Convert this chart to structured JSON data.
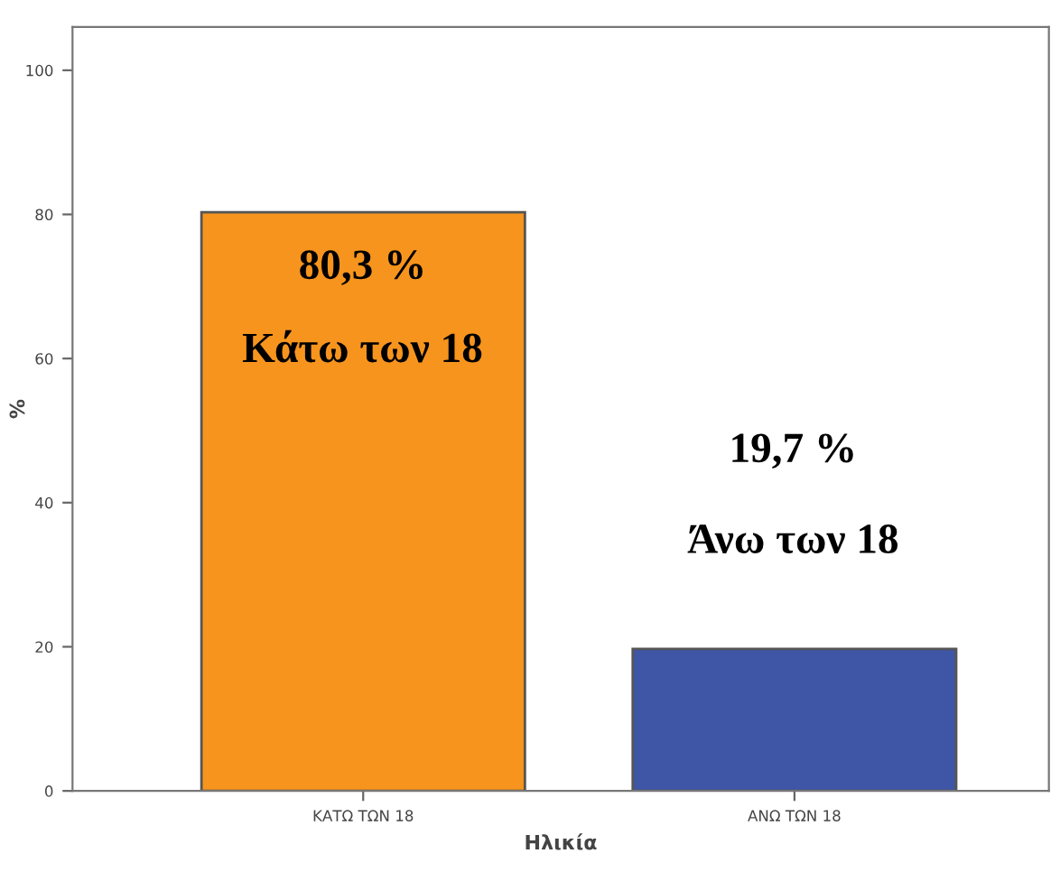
{
  "chart_data": {
    "type": "bar",
    "categories": [
      "ΚΑΤΩ ΤΩΝ 18",
      "ΑΝΩ ΤΩΝ 18"
    ],
    "values": [
      80.3,
      19.7
    ],
    "colors": [
      "#f7941d",
      "#3f56a6"
    ],
    "xlabel": "Ηλικία",
    "ylabel": "%",
    "ylim": [
      0,
      106
    ],
    "yticks": [
      0,
      20,
      40,
      60,
      80,
      100
    ],
    "annotations": [
      "80,3 %",
      "Κάτω των 18",
      "19,7 %",
      "Άνω των 18"
    ],
    "grid": false,
    "legend": false
  }
}
